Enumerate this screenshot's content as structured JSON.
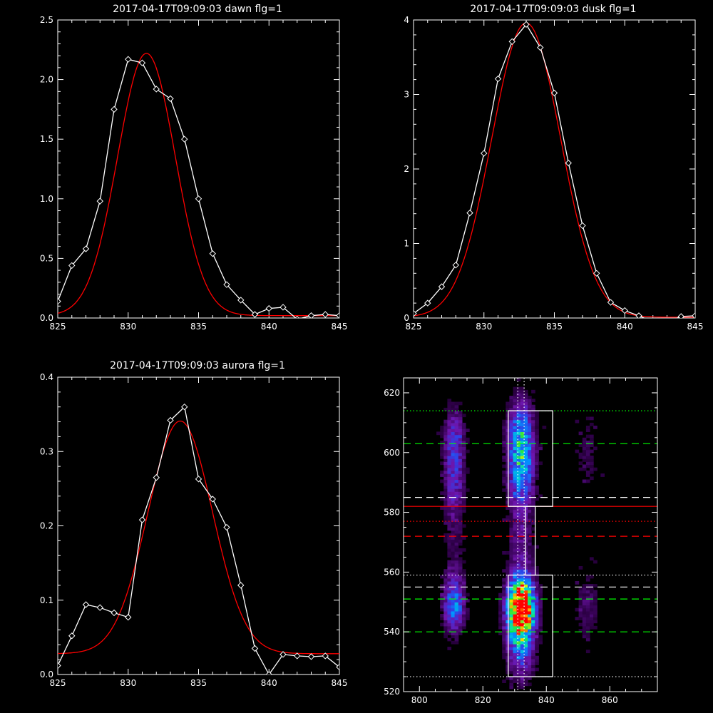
{
  "chart_data": [
    {
      "type": "line",
      "title": "2017-04-17T09:09:03 dawn flg=1",
      "xlim": [
        825,
        845
      ],
      "ylim": [
        0,
        2.5
      ],
      "xticks": [
        "825",
        "830",
        "835",
        "840",
        "845"
      ],
      "yticks": [
        "0.0",
        "0.5",
        "1.0",
        "1.5",
        "2.0",
        "2.5"
      ],
      "series": [
        {
          "color": "#ffffff",
          "marker": "diamond",
          "x": [
            825,
            826,
            827,
            828,
            829,
            830,
            831,
            832,
            833,
            834,
            835,
            836,
            837,
            838,
            839,
            840,
            841,
            842,
            843,
            844,
            845
          ],
          "y": [
            0.14,
            0.44,
            0.58,
            0.98,
            1.75,
            2.17,
            2.14,
            1.92,
            1.84,
            1.5,
            1.0,
            0.54,
            0.28,
            0.15,
            0.03,
            0.08,
            0.09,
            -0.01,
            0.02,
            0.03,
            0.02
          ]
        },
        {
          "color": "#ff0000",
          "fit": "gaussian",
          "amplitude": 2.2,
          "center": 831.3,
          "sigma": 2.05,
          "offset": 0.02
        }
      ]
    },
    {
      "type": "line",
      "title": "2017-04-17T09:09:03 dusk flg=1",
      "xlim": [
        825,
        845
      ],
      "ylim": [
        0,
        4
      ],
      "xticks": [
        "825",
        "830",
        "835",
        "840",
        "845"
      ],
      "yticks": [
        "0",
        "1",
        "2",
        "3",
        "4"
      ],
      "series": [
        {
          "color": "#ffffff",
          "marker": "diamond",
          "x": [
            825,
            826,
            827,
            828,
            829,
            830,
            831,
            832,
            833,
            834,
            835,
            836,
            837,
            838,
            839,
            840,
            841,
            842,
            843,
            844,
            845
          ],
          "y": [
            0.06,
            0.2,
            0.42,
            0.71,
            1.41,
            2.21,
            3.21,
            3.71,
            3.94,
            3.63,
            3.02,
            2.08,
            1.24,
            0.6,
            0.21,
            0.1,
            0.03,
            -0.05,
            -0.05,
            0.02,
            0.03
          ]
        },
        {
          "color": "#ff0000",
          "fit": "gaussian",
          "amplitude": 3.95,
          "center": 833.0,
          "sigma": 2.45,
          "offset": 0.01
        }
      ]
    },
    {
      "type": "line",
      "title": "2017-04-17T09:09:03 aurora flg=1",
      "xlim": [
        825,
        845
      ],
      "ylim": [
        0,
        0.4
      ],
      "xticks": [
        "825",
        "830",
        "835",
        "840",
        "845"
      ],
      "yticks": [
        "0.0",
        "0.1",
        "0.2",
        "0.3",
        "0.4"
      ],
      "series": [
        {
          "color": "#ffffff",
          "marker": "diamond",
          "x": [
            825,
            826,
            827,
            828,
            829,
            830,
            831,
            832,
            833,
            834,
            835,
            836,
            837,
            838,
            839,
            840,
            841,
            842,
            843,
            844,
            845
          ],
          "y": [
            0.012,
            0.052,
            0.094,
            0.09,
            0.083,
            0.077,
            0.208,
            0.265,
            0.342,
            0.36,
            0.263,
            0.236,
            0.198,
            0.12,
            0.035,
            0.0,
            0.027,
            0.025,
            0.024,
            0.025,
            0.01
          ]
        },
        {
          "color": "#ff0000",
          "fit": "gaussian",
          "amplitude": 0.313,
          "center": 833.7,
          "sigma": 2.3,
          "offset": 0.028
        }
      ]
    },
    {
      "type": "heatmap",
      "xlim": [
        795,
        875
      ],
      "ylim": [
        520,
        625
      ],
      "xticks": [
        "800",
        "820",
        "840",
        "860"
      ],
      "yticks": [
        "520",
        "540",
        "560",
        "580",
        "600",
        "620"
      ],
      "blobs": [
        {
          "x": 832,
          "y": 549,
          "sx": 3.0,
          "sy": 7,
          "amp": 1.0
        },
        {
          "x": 832,
          "y": 538,
          "sx": 3.2,
          "sy": 10,
          "amp": 0.45
        },
        {
          "x": 832,
          "y": 605,
          "sx": 3.0,
          "sy": 9,
          "amp": 0.58
        },
        {
          "x": 832,
          "y": 590,
          "sx": 3.0,
          "sy": 8,
          "amp": 0.35
        },
        {
          "x": 832,
          "y": 570,
          "sx": 3.0,
          "sy": 9,
          "amp": 0.2
        },
        {
          "x": 811,
          "y": 549,
          "sx": 2.5,
          "sy": 7,
          "amp": 0.48
        },
        {
          "x": 811,
          "y": 604,
          "sx": 2.5,
          "sy": 9,
          "amp": 0.33
        },
        {
          "x": 811,
          "y": 588,
          "sx": 2.5,
          "sy": 8,
          "amp": 0.22
        },
        {
          "x": 811,
          "y": 570,
          "sx": 2.5,
          "sy": 10,
          "amp": 0.13
        },
        {
          "x": 853,
          "y": 549,
          "sx": 3.0,
          "sy": 9,
          "amp": 0.17
        },
        {
          "x": 853,
          "y": 600,
          "sx": 3.0,
          "sy": 11,
          "amp": 0.13
        }
      ],
      "boxes": [
        {
          "x0": 828,
          "x1": 842,
          "y0": 582,
          "y1": 614
        },
        {
          "x0": 833.5,
          "x1": 836.5,
          "y0": 559,
          "y1": 582
        },
        {
          "x0": 828,
          "x1": 842,
          "y0": 525,
          "y1": 559
        }
      ],
      "hlines": [
        {
          "y": 614,
          "color": "#00ff00",
          "style": "dotted"
        },
        {
          "y": 603,
          "color": "#00ff00",
          "style": "dashed"
        },
        {
          "y": 585,
          "color": "#ffffff",
          "style": "dashed"
        },
        {
          "y": 582,
          "color": "#ff0000",
          "style": "solid"
        },
        {
          "y": 577,
          "color": "#ff0000",
          "style": "dotted"
        },
        {
          "y": 572,
          "color": "#ff0000",
          "style": "dashed"
        },
        {
          "y": 559,
          "color": "#ffffff",
          "style": "dotted"
        },
        {
          "y": 555,
          "color": "#ffffff",
          "style": "dashed"
        },
        {
          "y": 551,
          "color": "#00ff00",
          "style": "dashed"
        },
        {
          "y": 540,
          "color": "#00ff00",
          "style": "dashed"
        },
        {
          "y": 525,
          "color": "#ffffff",
          "style": "dotted"
        }
      ],
      "vlines": [
        {
          "x": 831.0,
          "color": "#ffffff",
          "style": "dotted"
        },
        {
          "x": 833.0,
          "color": "#ffffff",
          "style": "dotted"
        }
      ]
    }
  ]
}
